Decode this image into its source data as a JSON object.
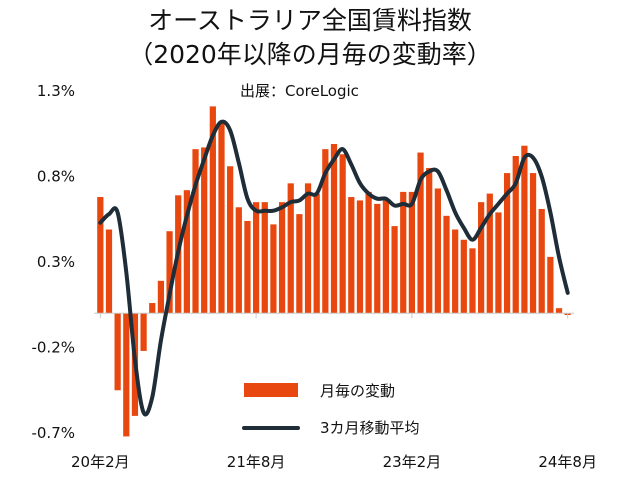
{
  "chart_data": {
    "type": "bar",
    "title": "オーストラリア全国賃料指数",
    "subtitle": "（2020年以降の月毎の変動率）",
    "source": "出展：CoreLogic",
    "y_tick_labels": [
      "1.3%",
      "0.8%",
      "0.3%",
      "-0.2%",
      "-0.7%"
    ],
    "y_ticks": [
      1.3,
      0.8,
      0.3,
      -0.2,
      -0.7
    ],
    "ylim": [
      -0.7,
      1.3
    ],
    "x_tick_labels": [
      "20年2月",
      "21年8月",
      "23年2月",
      "24年8月"
    ],
    "x_tick_positions": [
      0,
      18,
      36,
      54
    ],
    "categories_start": "2020-02",
    "categories_end": "2024-08",
    "grid": false,
    "legend_position": "bottom-center",
    "series": [
      {
        "name": "月毎の変動",
        "type": "bar",
        "color": "#e8480f",
        "values": [
          0.68,
          0.49,
          -0.45,
          -0.72,
          -0.6,
          -0.22,
          0.06,
          0.19,
          0.48,
          0.69,
          0.72,
          0.96,
          0.97,
          1.21,
          1.12,
          0.86,
          0.62,
          0.54,
          0.65,
          0.65,
          0.52,
          0.65,
          0.76,
          0.58,
          0.76,
          0.7,
          0.96,
          0.99,
          0.93,
          0.68,
          0.66,
          0.71,
          0.64,
          0.67,
          0.51,
          0.71,
          0.71,
          0.94,
          0.85,
          0.73,
          0.57,
          0.49,
          0.43,
          0.38,
          0.65,
          0.7,
          0.59,
          0.82,
          0.92,
          0.98,
          0.82,
          0.61,
          0.33,
          0.03,
          -0.01
        ]
      },
      {
        "name": "3カ月移動平均",
        "type": "line",
        "color": "#1f2d38",
        "values": [
          0.53,
          0.58,
          0.59,
          0.24,
          -0.27,
          -0.58,
          -0.49,
          -0.16,
          0.11,
          0.36,
          0.57,
          0.75,
          0.9,
          1.04,
          1.12,
          1.07,
          0.88,
          0.67,
          0.6,
          0.6,
          0.6,
          0.62,
          0.65,
          0.66,
          0.7,
          0.7,
          0.82,
          0.9,
          0.96,
          0.87,
          0.76,
          0.7,
          0.67,
          0.67,
          0.63,
          0.64,
          0.64,
          0.78,
          0.83,
          0.83,
          0.72,
          0.59,
          0.5,
          0.43,
          0.5,
          0.58,
          0.64,
          0.7,
          0.76,
          0.91,
          0.91,
          0.8,
          0.59,
          0.33,
          0.12
        ]
      }
    ]
  }
}
